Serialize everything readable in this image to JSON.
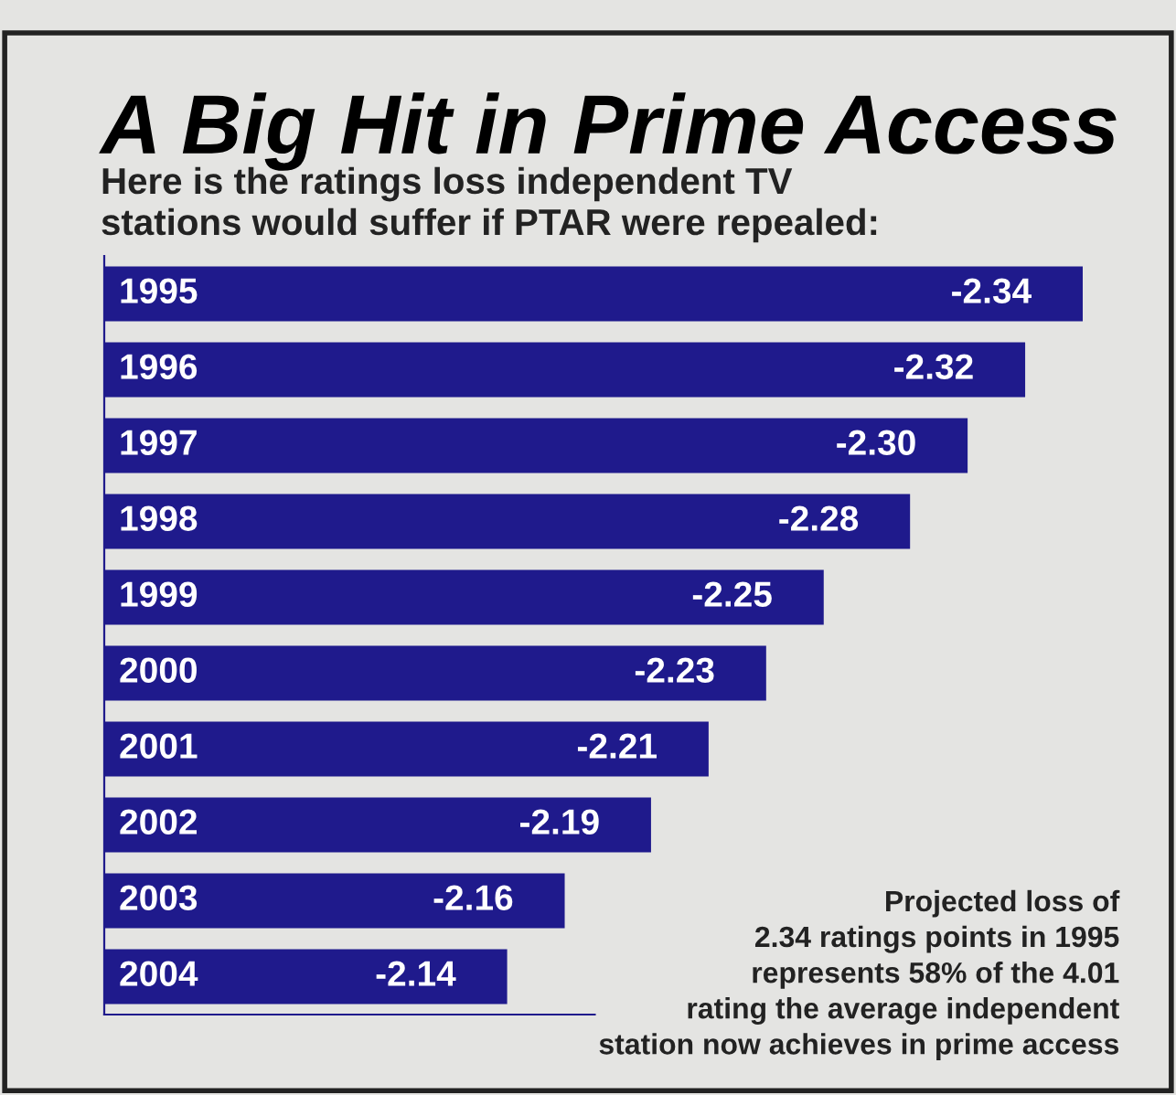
{
  "chart_data": {
    "type": "bar",
    "orientation": "horizontal",
    "title": "A Big Hit in Prime Access",
    "subtitle": "Here is the ratings loss independent TV\nstations would suffer if PTAR were repealed:",
    "categories": [
      "1995",
      "1996",
      "1997",
      "1998",
      "1999",
      "2000",
      "2001",
      "2002",
      "2003",
      "2004"
    ],
    "values": [
      -2.34,
      -2.32,
      -2.3,
      -2.28,
      -2.25,
      -2.23,
      -2.21,
      -2.19,
      -2.16,
      -2.14
    ],
    "value_labels": [
      "-2.34",
      "-2.32",
      "-2.30",
      "-2.28",
      "-2.25",
      "-2.23",
      "-2.21",
      "-2.19",
      "-2.16",
      "-2.14"
    ],
    "color": "#1f1a8c",
    "xlim": [
      -2.0,
      -2.34
    ],
    "tick_labels": false,
    "legend": false,
    "annotations": [
      "Projected loss of\n2.34 ratings points in 1995\nrepresents 58% of the 4.01\nrating the average independent\nstation now achieves in prime access"
    ]
  }
}
